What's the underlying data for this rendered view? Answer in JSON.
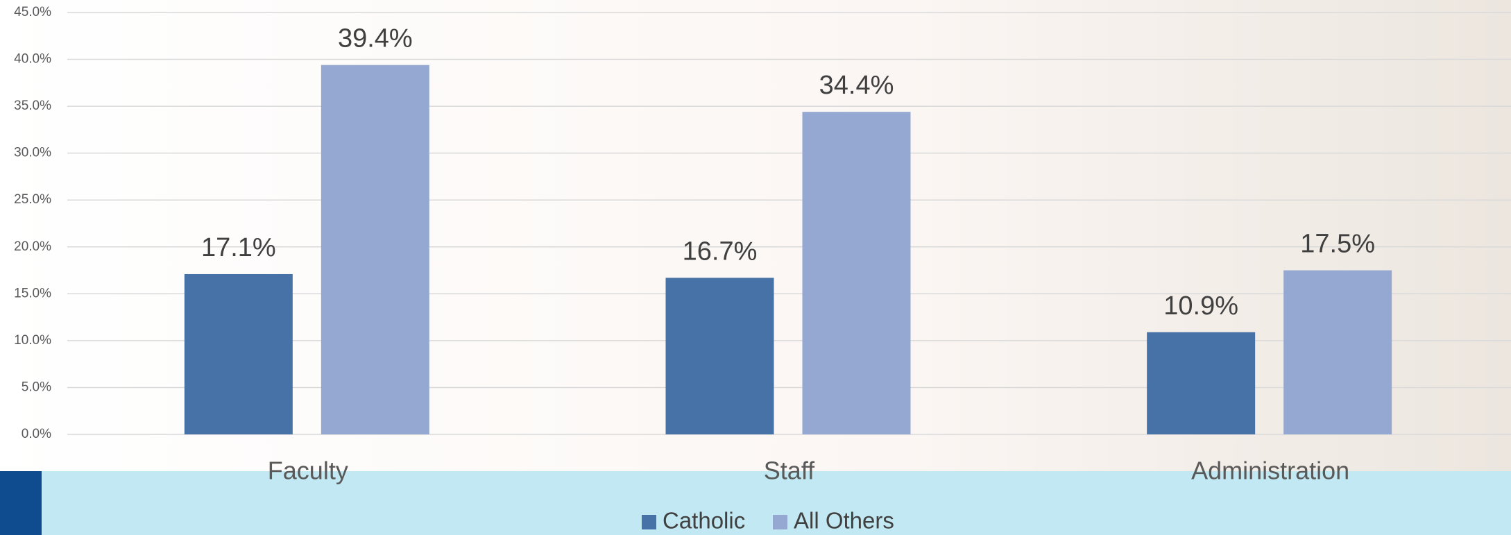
{
  "chart_data": {
    "type": "bar",
    "categories": [
      "Faculty",
      "Staff",
      "Administration"
    ],
    "series": [
      {
        "name": "Catholic",
        "color": "#4672a8",
        "values": [
          17.1,
          16.7,
          10.9
        ],
        "value_labels": [
          "17.1%",
          "16.7%",
          "10.9%"
        ]
      },
      {
        "name": "All Others",
        "color": "#95a8d1",
        "values": [
          39.4,
          34.4,
          17.5
        ],
        "value_labels": [
          "39.4%",
          "34.4%",
          "17.5%"
        ]
      }
    ],
    "ylim": [
      0,
      45
    ],
    "yticks": [
      {
        "value": 0,
        "label": "0.0%"
      },
      {
        "value": 5,
        "label": "5.0%"
      },
      {
        "value": 10,
        "label": "10.0%"
      },
      {
        "value": 15,
        "label": "15.0%"
      },
      {
        "value": 20,
        "label": "20.0%"
      },
      {
        "value": 25,
        "label": "25.0%"
      },
      {
        "value": 30,
        "label": "30.0%"
      },
      {
        "value": 35,
        "label": "35.0%"
      },
      {
        "value": 40,
        "label": "40.0%"
      },
      {
        "value": 45,
        "label": "45.0%"
      }
    ],
    "grid": true,
    "legend": "bottom"
  }
}
